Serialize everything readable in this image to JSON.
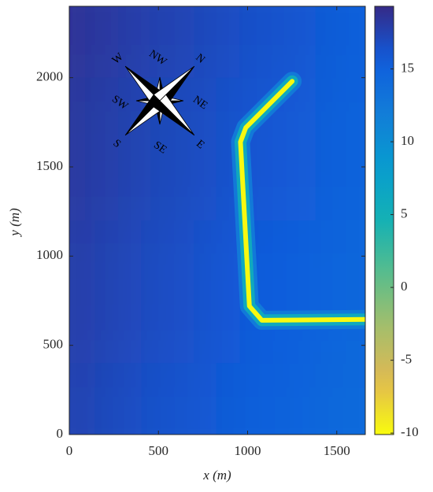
{
  "chart_data": {
    "type": "heatmap",
    "x_label": "x (m)",
    "y_label": "y (m)",
    "xlim": [
      0,
      1660
    ],
    "ylim": [
      0,
      2400
    ],
    "xticks": [
      0,
      500,
      1000,
      1500
    ],
    "yticks": [
      0,
      500,
      1000,
      1500,
      2000
    ],
    "colormap": "parula",
    "reversed": true,
    "clim": [
      -10.1,
      19.3
    ],
    "cticks": [
      -10,
      -5,
      0,
      5,
      10,
      15
    ],
    "field": {
      "x": [
        0,
        550,
        1100,
        1660
      ],
      "y": [
        0,
        800,
        1600,
        2400
      ],
      "z": [
        [
          17.5,
          16.3,
          15.2,
          14.0
        ],
        [
          17.9,
          16.7,
          15.6,
          14.4
        ],
        [
          18.3,
          17.1,
          16.0,
          14.8
        ],
        [
          18.7,
          17.5,
          16.4,
          15.2
        ]
      ]
    },
    "structure": {
      "x": [
        1250,
        990,
        960,
        1010,
        1080,
        1660
      ],
      "y": [
        1980,
        1720,
        1640,
        720,
        640,
        645
      ],
      "levels": [
        12,
        6,
        -10
      ]
    },
    "compass": [
      "W",
      "NW",
      "N",
      "SW",
      "NE",
      "S",
      "SE",
      "E"
    ]
  }
}
